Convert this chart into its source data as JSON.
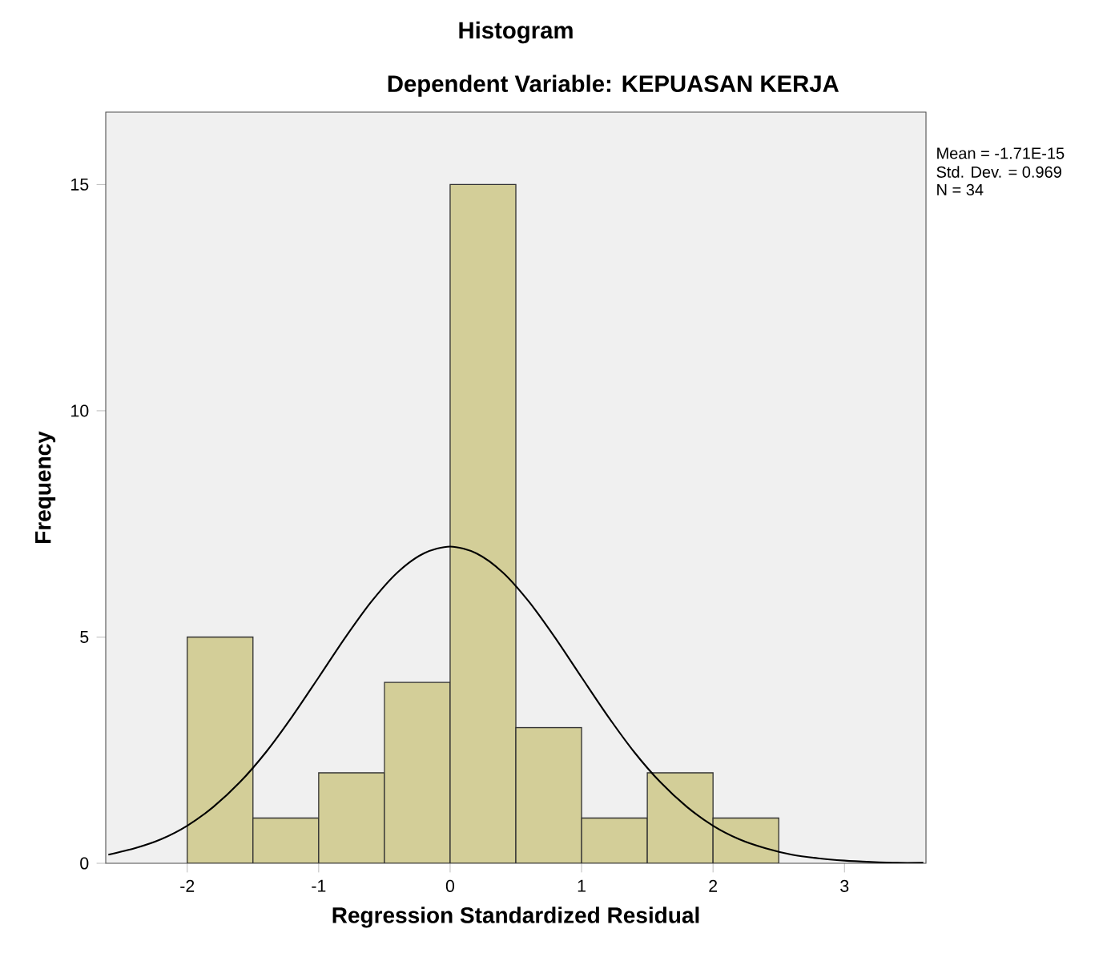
{
  "chart_data": {
    "type": "histogram",
    "title": "Histogram",
    "subtitle": "Dependent Variable: KEPUASAN KERJA",
    "xlabel": "Regression Standardized Residual",
    "ylabel": "Frequency",
    "series": [
      {
        "bins": [
          -2,
          -1.5,
          -1,
          -0.5,
          0,
          0.5,
          1,
          1.5,
          2,
          2.5
        ],
        "values": [
          5,
          1,
          2,
          4,
          15,
          3,
          1,
          2,
          1
        ],
        "color": "#d3ce98"
      },
      {
        "type": "line",
        "color": "#000000",
        "x": [
          -2.6,
          -2.4,
          -2.2,
          -2.0,
          -1.8,
          -1.6,
          -1.4,
          -1.2,
          -1.0,
          -0.8,
          -0.6,
          -0.4,
          -0.2,
          0,
          0.2,
          0.4,
          0.6,
          0.8,
          1.0,
          1.2,
          1.4,
          1.6,
          1.8,
          2.0,
          2.2,
          2.4,
          2.6,
          2.8,
          3.0,
          3.2,
          3.4,
          3.6
        ],
        "values": [
          0.19,
          0.33,
          0.53,
          0.83,
          1.25,
          1.79,
          2.46,
          3.25,
          4.11,
          4.98,
          5.78,
          6.43,
          6.85,
          7.0,
          6.85,
          6.43,
          5.78,
          4.98,
          4.11,
          3.25,
          2.46,
          1.79,
          1.25,
          0.83,
          0.53,
          0.33,
          0.19,
          0.11,
          0.06,
          0.03,
          0.01,
          0.01
        ]
      }
    ],
    "xlim": [
      -2.62,
      3.62
    ],
    "ylim": [
      0,
      16.6
    ],
    "xticks": [
      -2,
      -1,
      0,
      1,
      2,
      3
    ],
    "yticks": [
      0,
      5,
      10,
      15
    ],
    "grid": false,
    "annotations": [
      "Mean = -1.71E-15",
      "Std. Dev. = 0.969",
      "N = 34"
    ]
  }
}
